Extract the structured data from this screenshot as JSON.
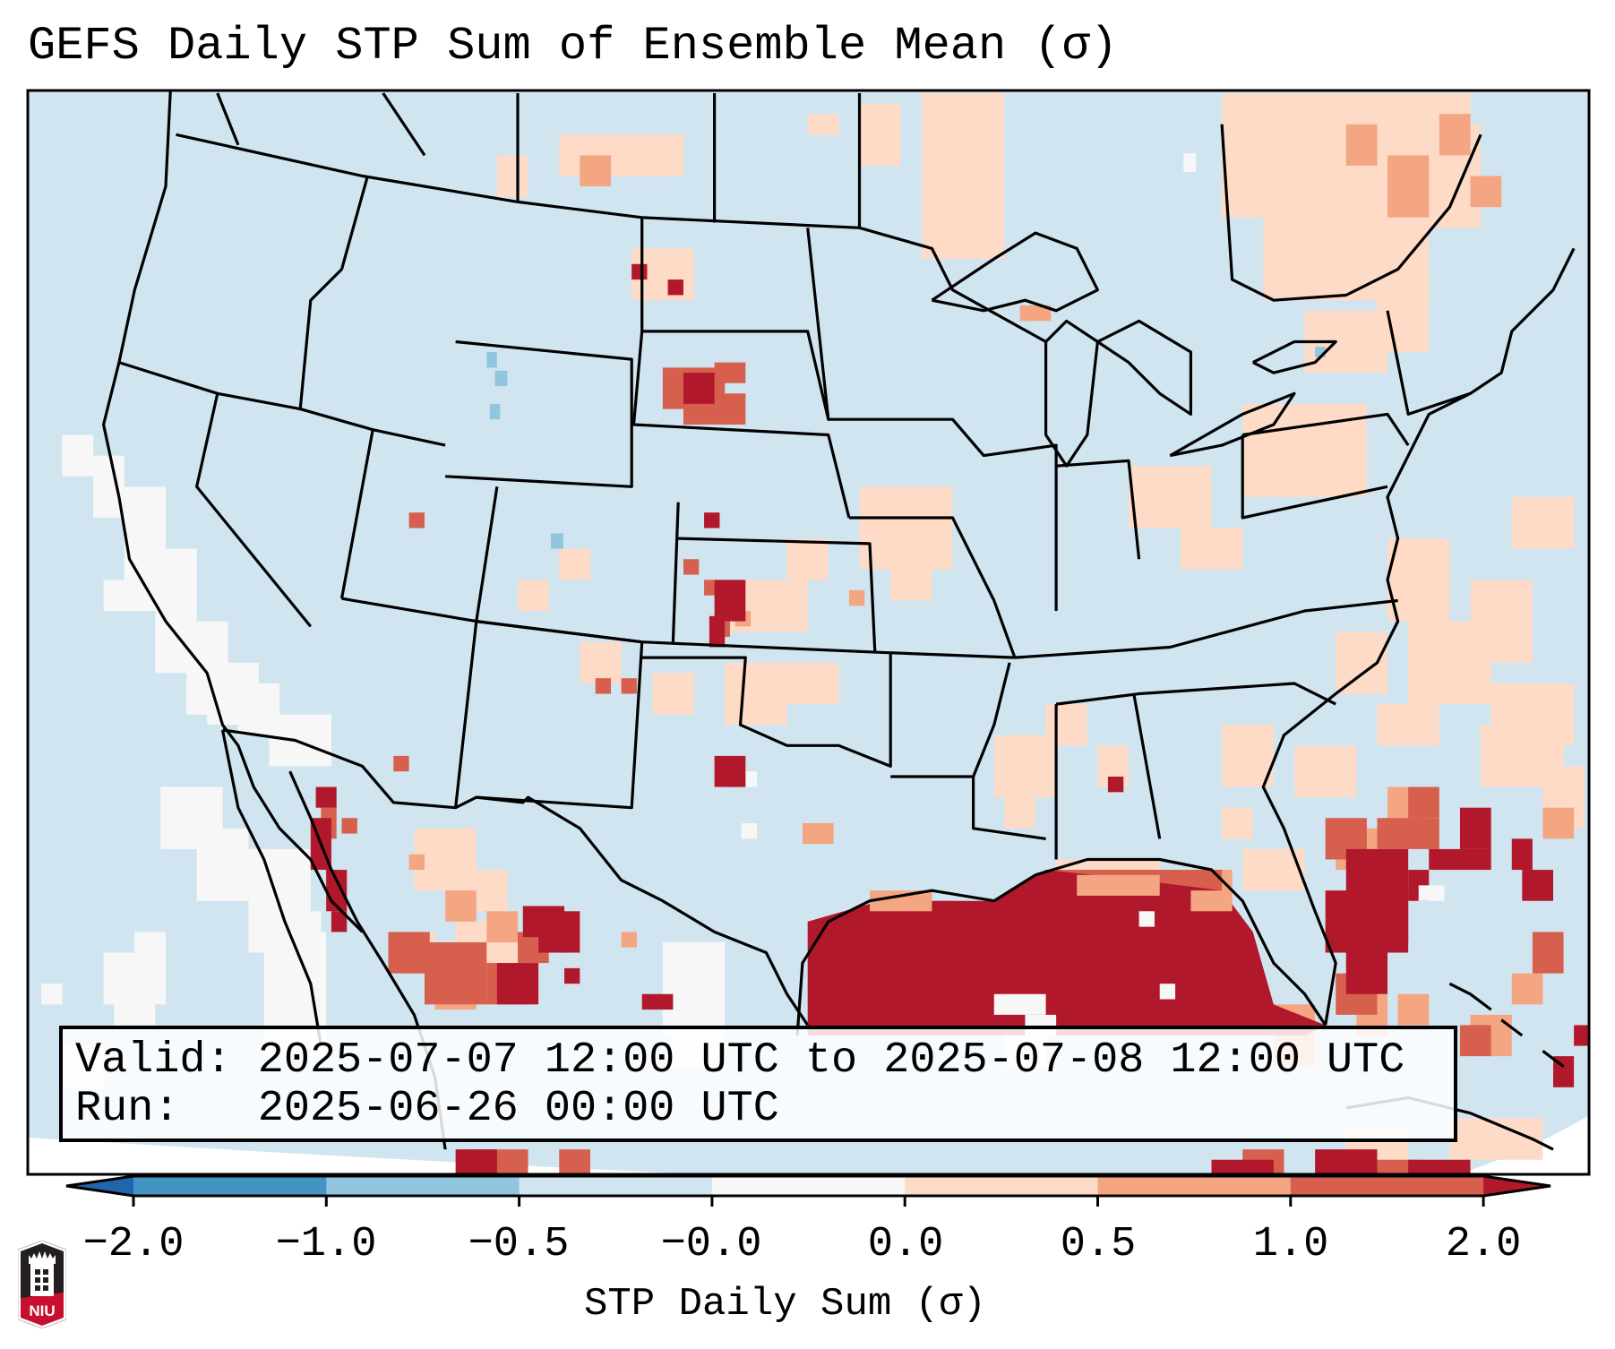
{
  "title": "GEFS Daily STP Sum of Ensemble Mean (σ)",
  "info": {
    "valid_line": "Valid: 2025-07-07 12:00 UTC to 2025-07-08 12:00 UTC",
    "run_line": "Run:   2025-06-26 00:00 UTC"
  },
  "colorbar": {
    "label": "STP Daily Sum (σ)",
    "ticks": [
      "−2.0",
      "−1.0",
      "−0.5",
      "−0.0",
      "0.0",
      "0.5",
      "1.0",
      "2.0"
    ],
    "bins": [
      {
        "range": "< -2.0",
        "color": "#2166ac"
      },
      {
        "range": "-2.0 to -1.0",
        "color": "#4393c3"
      },
      {
        "range": "-1.0 to -0.5",
        "color": "#92c5de"
      },
      {
        "range": "-0.5 to -0.0",
        "color": "#d1e5f0"
      },
      {
        "range": "-0.0 to 0.0",
        "color": "#f7f7f7"
      },
      {
        "range": "0.0 to 0.5",
        "color": "#fddbc7"
      },
      {
        "range": "0.5 to 1.0",
        "color": "#f4a582"
      },
      {
        "range": "1.0 to 2.0",
        "color": "#d6604d"
      },
      {
        "range": "> 2.0",
        "color": "#b2182b"
      }
    ],
    "extend": "both"
  },
  "logo": {
    "text": "NIU",
    "colors": {
      "shield": "#231f20",
      "band": "#c8102e"
    }
  },
  "chart_data": {
    "type": "heatmap",
    "title": "GEFS Daily STP Sum of Ensemble Mean (σ)",
    "colorbar_label": "STP Daily Sum (σ)",
    "levels": [
      -2.0,
      -1.0,
      -0.5,
      -0.0,
      0.0,
      0.5,
      1.0,
      2.0
    ],
    "region": "Contiguous United States, southern Canada, northern Mexico, Gulf of Mexico, western Atlantic",
    "valid": "2025-07-07 12:00 UTC to 2025-07-08 12:00 UTC",
    "run": "2025-06-26 00:00 UTC",
    "features": [
      {
        "area": "Gulf of Mexico",
        "category": "> 2.0"
      },
      {
        "area": "Western Atlantic off Florida / Bahamas",
        "category": "1.0 to > 2.0"
      },
      {
        "area": "Northern Mexico / Gulf of California",
        "category": "0.5 to > 2.0"
      },
      {
        "area": "Western South Dakota",
        "category": "1.0 to 2.0"
      },
      {
        "area": "Quebec / Ontario",
        "category": "0.0 to 1.0"
      },
      {
        "area": "California and eastern Pacific",
        "category": "-0.0 to 0.0"
      },
      {
        "area": "Most of CONUS",
        "category": "-0.5 to -0.0"
      }
    ]
  }
}
